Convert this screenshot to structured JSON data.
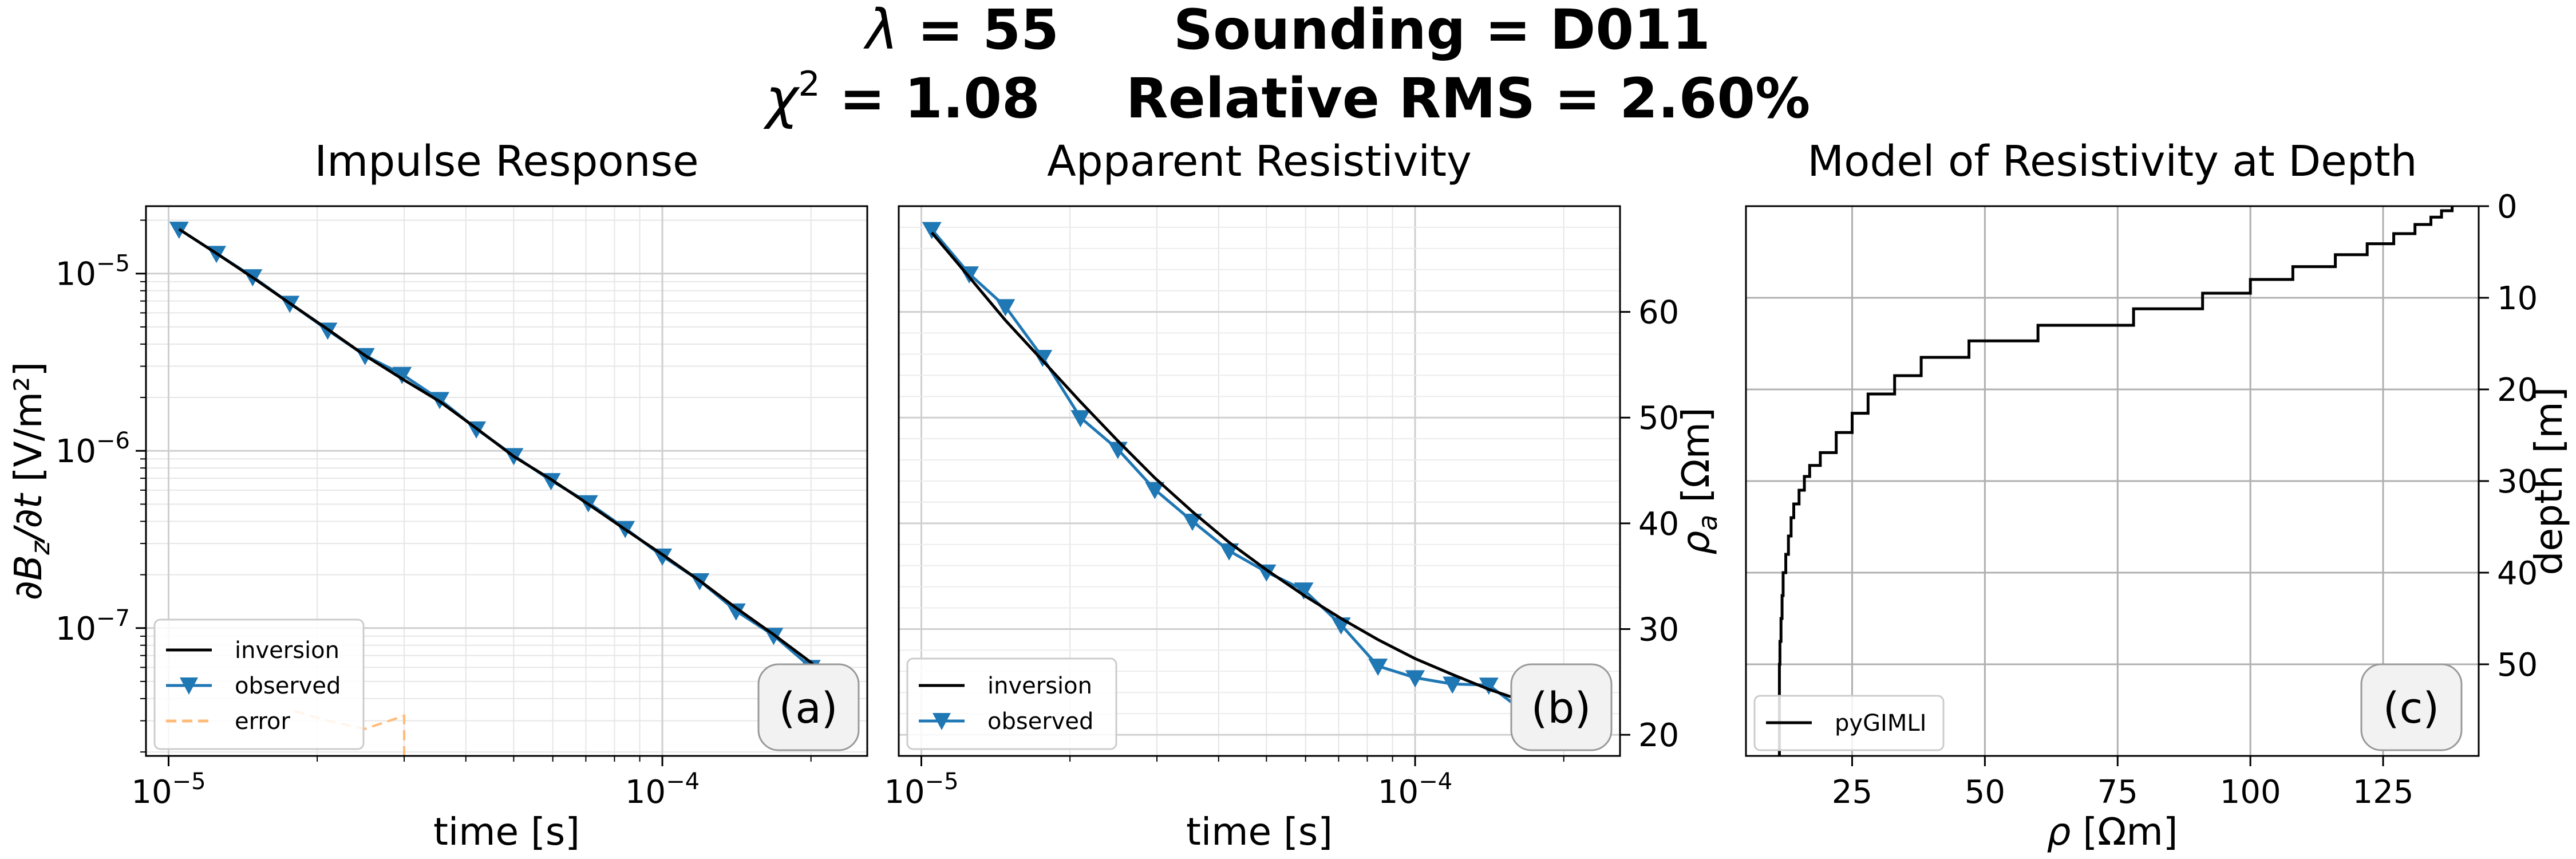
{
  "suptitle": {
    "lambda_label": "λ",
    "lambda_value": "55",
    "sounding_label": "Sounding",
    "sounding_value": "D011",
    "chi_label": "χ",
    "chi_sup": "2",
    "chi_value": "1.08",
    "rms_label": "Relative RMS",
    "rms_value": "2.60%"
  },
  "colors": {
    "inversion": "#000000",
    "observed": "#1f77b4",
    "error": "#ffbb78"
  },
  "chart_data": [
    {
      "type": "line",
      "id": "impulse",
      "title": "Impulse Response",
      "xlabel": "time [s]",
      "ylabel": "∂Bz/∂t [V/m²]",
      "xscale": "log",
      "yscale": "log",
      "xlim": [
        9e-06,
        0.00026
      ],
      "ylim": [
        1.9e-08,
        2.4e-05
      ],
      "xticks": [
        {
          "value": 1e-05,
          "base": "10",
          "exp": "−5"
        },
        {
          "value": 0.0001,
          "base": "10",
          "exp": "−4"
        }
      ],
      "yticks": [
        {
          "value": 1e-05,
          "base": "10",
          "exp": "−5"
        },
        {
          "value": 1e-06,
          "base": "10",
          "exp": "−6"
        },
        {
          "value": 1e-07,
          "base": "10",
          "exp": "−7"
        }
      ],
      "grid": true,
      "legend_position": "lower-left",
      "panel_label": "(a)",
      "series": [
        {
          "name": "inversion",
          "style": "line",
          "x": [
            1.05e-05,
            1.25e-05,
            1.48e-05,
            1.76e-05,
            2.1e-05,
            2.5e-05,
            2.97e-05,
            3.54e-05,
            4.2e-05,
            5e-05,
            5.95e-05,
            7.08e-05,
            8.41e-05,
            0.0001,
            0.000119,
            0.000141,
            0.000168,
            0.0002,
            0.00023
          ],
          "y": [
            1.78e-05,
            1.3e-05,
            9.5e-06,
            6.8e-06,
            4.85e-06,
            3.45e-06,
            2.55e-06,
            1.9e-06,
            1.34e-06,
            9.3e-07,
            6.9e-07,
            5e-07,
            3.6e-07,
            2.6e-07,
            1.85e-07,
            1.3e-07,
            9.2e-08,
            6.4e-08,
            4.4e-08
          ]
        },
        {
          "name": "observed",
          "style": "line-markers",
          "x": [
            1.05e-05,
            1.25e-05,
            1.48e-05,
            1.76e-05,
            2.1e-05,
            2.5e-05,
            2.97e-05,
            3.54e-05,
            4.2e-05,
            5e-05,
            5.95e-05,
            7.08e-05,
            8.41e-05,
            0.0001,
            0.000119,
            0.000141,
            0.000168,
            0.0002,
            0.00023
          ],
          "y": [
            1.78e-05,
            1.3e-05,
            9.6e-06,
            6.8e-06,
            4.8e-06,
            3.45e-06,
            2.7e-06,
            1.95e-06,
            1.33e-06,
            9.4e-07,
            6.8e-07,
            5.1e-07,
            3.65e-07,
            2.55e-07,
            1.85e-07,
            1.25e-07,
            9.1e-08,
            6e-08,
            4.5e-08
          ]
        },
        {
          "name": "error",
          "style": "dashed",
          "x": [
            1.8e-05,
            2.1e-05,
            2.5e-05,
            2.9e-05,
            3e-05,
            3e-05
          ],
          "y": [
            3.4e-08,
            3e-08,
            2.7e-08,
            3.1e-08,
            3.2e-08,
            1.9e-08
          ]
        }
      ]
    },
    {
      "type": "line",
      "id": "apparent",
      "title": "Apparent Resistivity",
      "xlabel": "time [s]",
      "ylabel": "ρa [Ωm]",
      "xscale": "log",
      "yscale": "linear",
      "xlim": [
        9e-06,
        0.00026
      ],
      "ylim": [
        18,
        70
      ],
      "xticks": [
        {
          "value": 1e-05,
          "base": "10",
          "exp": "−5"
        },
        {
          "value": 0.0001,
          "base": "10",
          "exp": "−4"
        }
      ],
      "yticks": [
        20,
        30,
        40,
        50,
        60
      ],
      "yaxis_side": "right",
      "grid": true,
      "legend_position": "lower-left",
      "panel_label": "(b)",
      "series": [
        {
          "name": "inversion",
          "style": "line",
          "x": [
            1.05e-05,
            1.25e-05,
            1.48e-05,
            1.76e-05,
            2.1e-05,
            2.5e-05,
            2.97e-05,
            3.54e-05,
            4.2e-05,
            5e-05,
            5.95e-05,
            7.08e-05,
            8.41e-05,
            0.0001,
            0.000119,
            0.000141,
            0.000168,
            0.0002,
            0.00023
          ],
          "y": [
            67.5,
            63.3,
            59.2,
            55.4,
            51.5,
            47.8,
            44.3,
            41.1,
            38.2,
            35.6,
            33.2,
            31.0,
            29.0,
            27.2,
            25.7,
            24.3,
            23.1,
            22.0,
            21.0
          ]
        },
        {
          "name": "observed",
          "style": "line-markers",
          "x": [
            1.05e-05,
            1.25e-05,
            1.48e-05,
            1.76e-05,
            2.1e-05,
            2.5e-05,
            2.97e-05,
            3.54e-05,
            4.2e-05,
            5e-05,
            5.95e-05,
            7.08e-05,
            8.41e-05,
            0.0001,
            0.000119,
            0.000141,
            0.000168,
            0.0002,
            0.00023
          ],
          "y": [
            67.8,
            63.6,
            60.5,
            55.7,
            50.0,
            47.0,
            43.2,
            40.2,
            37.4,
            35.4,
            33.7,
            30.4,
            26.5,
            25.4,
            24.8,
            24.7,
            22.0,
            21.6,
            20.3
          ]
        }
      ]
    },
    {
      "type": "line",
      "id": "model",
      "title": "Model of Resistivity at Depth",
      "xlabel": "ρ [Ωm]",
      "ylabel": "depth [m]",
      "xscale": "linear",
      "yscale": "linear",
      "xlim": [
        5,
        143
      ],
      "ylim": [
        60,
        0
      ],
      "xticks": [
        25,
        50,
        75,
        100,
        125
      ],
      "yticks": [
        0,
        10,
        20,
        30,
        40,
        50
      ],
      "yaxis_side": "right",
      "grid": true,
      "legend_position": "lower-left",
      "panel_label": "(c)",
      "series": [
        {
          "name": "pyGIMLI",
          "style": "step",
          "rho": [
            138,
            136,
            134,
            131,
            127,
            122,
            116,
            108,
            100,
            91,
            78,
            60,
            47,
            38,
            33,
            28,
            25,
            22,
            19,
            17,
            16,
            15,
            14,
            13.5,
            13,
            12.5,
            12,
            11.8,
            11.6,
            11.4,
            11.3
          ],
          "depth_top": [
            0,
            0.5,
            1.2,
            2.0,
            3.0,
            4.1,
            5.3,
            6.6,
            8.0,
            9.5,
            11.2,
            13.0,
            14.7,
            16.5,
            18.5,
            20.5,
            22.6,
            24.7,
            26.9,
            28.3,
            29.5,
            31.0,
            32.5,
            34.0,
            36.0,
            38.0,
            40.0,
            42.5,
            45.0,
            47.5,
            50.0
          ],
          "depth_bottom": 60
        }
      ]
    }
  ]
}
